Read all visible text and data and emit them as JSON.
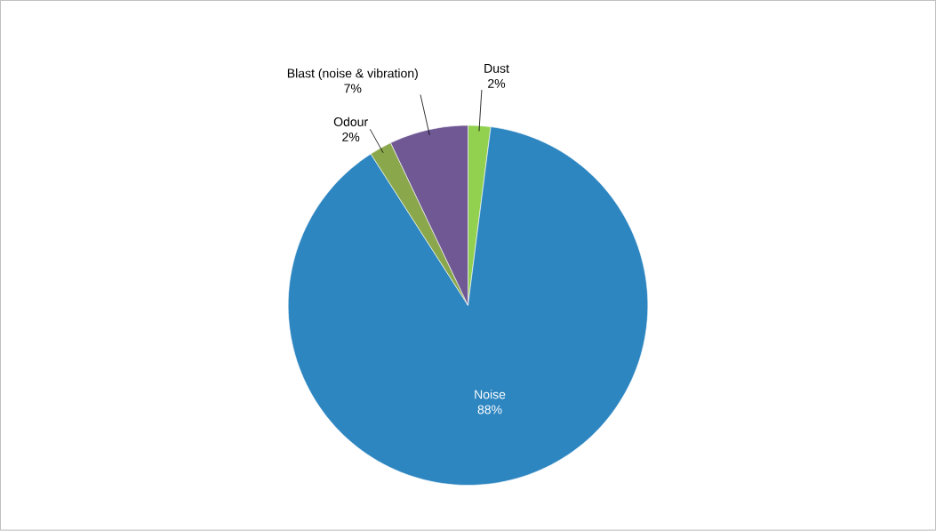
{
  "chart_data": {
    "type": "pie",
    "categories": [
      "Dust",
      "Noise",
      "Odour",
      "Blast (noise & vibration)"
    ],
    "values": [
      2,
      88,
      2,
      7
    ],
    "value_labels": [
      "2%",
      "88%",
      "2%",
      "7%"
    ],
    "colors": [
      "#92d050",
      "#2e86c1",
      "#8aa84b",
      "#6f5894"
    ]
  }
}
